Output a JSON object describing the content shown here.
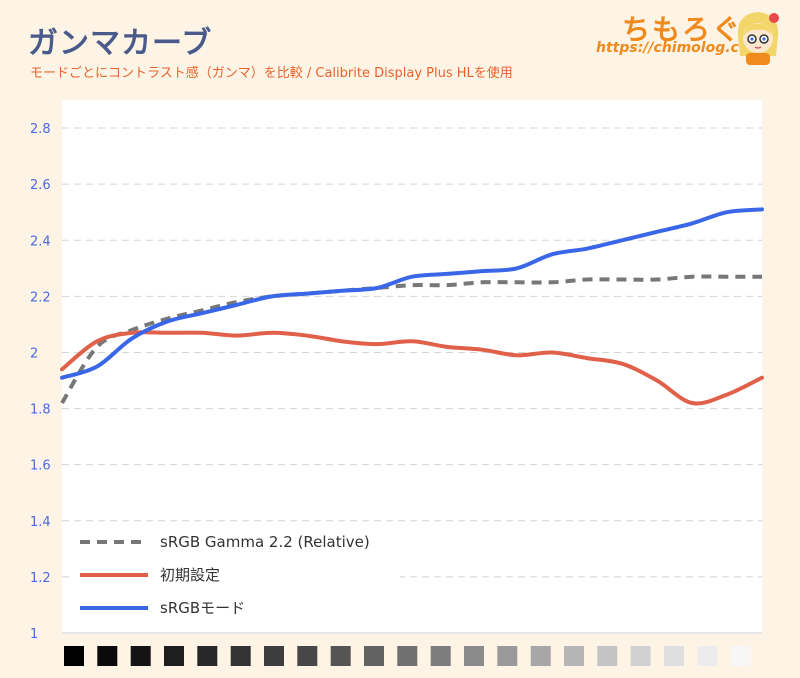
{
  "header": {
    "title": "ガンマカーブ",
    "subtitle": "モードごとにコントラスト感（ガンマ）を比較 / Calibrite Display Plus HLを使用"
  },
  "brand": {
    "name": "ちもろぐ",
    "url": "https://chimolog.co/",
    "mascot_icon": "mascot-icon"
  },
  "chart_data": {
    "type": "line",
    "title": "",
    "xlabel": "",
    "ylabel": "",
    "ylim": [
      1,
      2.9
    ],
    "yticks": [
      "1",
      "1.2",
      "1.4",
      "1.6",
      "1.8",
      "2",
      "2.2",
      "2.4",
      "2.6",
      "2.8"
    ],
    "grid": "horizontal-dashed",
    "legend_position": "bottom-left",
    "x": [
      0,
      5,
      10,
      15,
      20,
      25,
      30,
      35,
      40,
      45,
      50,
      55,
      60,
      65,
      70,
      75,
      80,
      85,
      90,
      95,
      100
    ],
    "series": [
      {
        "name": "sRGB Gamma 2.2 (Relative)",
        "style": "dashed",
        "color": "#777777",
        "values": [
          1.82,
          2.02,
          2.08,
          2.12,
          2.15,
          2.18,
          2.2,
          2.21,
          2.22,
          2.23,
          2.24,
          2.24,
          2.25,
          2.25,
          2.25,
          2.26,
          2.26,
          2.26,
          2.27,
          2.27,
          2.27
        ]
      },
      {
        "name": "初期設定",
        "style": "solid",
        "color": "#e0604a",
        "values": [
          1.94,
          2.04,
          2.07,
          2.07,
          2.07,
          2.06,
          2.07,
          2.06,
          2.04,
          2.03,
          2.04,
          2.02,
          2.01,
          1.99,
          2.0,
          1.98,
          1.96,
          1.9,
          1.82,
          1.85,
          1.91
        ]
      },
      {
        "name": "sRGBモード",
        "style": "solid",
        "color": "#3a66e8",
        "values": [
          1.91,
          1.95,
          2.05,
          2.11,
          2.14,
          2.17,
          2.2,
          2.21,
          2.22,
          2.23,
          2.27,
          2.28,
          2.29,
          2.3,
          2.35,
          2.37,
          2.4,
          2.43,
          2.46,
          2.5,
          2.51
        ]
      }
    ],
    "grayscale_steps": [
      "#000000",
      "#0a0a0a",
      "#141414",
      "#1e1e1e",
      "#282828",
      "#333333",
      "#3d3d3d",
      "#474747",
      "#555555",
      "#626262",
      "#707070",
      "#7d7d7d",
      "#8b8b8b",
      "#999999",
      "#a7a7a7",
      "#b5b5b5",
      "#c3c3c3",
      "#d1d1d1",
      "#dfdfdf",
      "#ececec",
      "#f7f7f7"
    ]
  }
}
